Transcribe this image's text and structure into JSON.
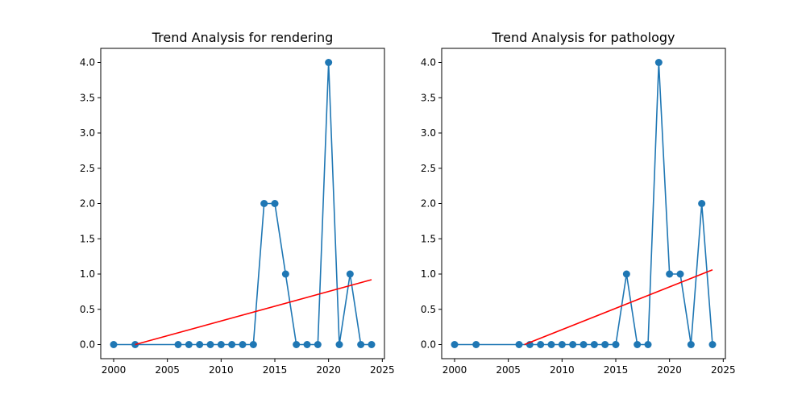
{
  "chart_data": [
    {
      "type": "line",
      "title": "Trend Analysis for rendering",
      "xlabel": "",
      "ylabel": "",
      "xlim": [
        1998.8,
        2025.2
      ],
      "ylim": [
        -0.2,
        4.2
      ],
      "xticks": [
        2000,
        2005,
        2010,
        2015,
        2020,
        2025
      ],
      "yticks": [
        0.0,
        0.5,
        1.0,
        1.5,
        2.0,
        2.5,
        3.0,
        3.5,
        4.0
      ],
      "grid": false,
      "series": [
        {
          "color": "#1f77b4",
          "marker": "circle",
          "x": [
            2000,
            2002,
            2006,
            2007,
            2008,
            2009,
            2010,
            2011,
            2012,
            2013,
            2014,
            2015,
            2016,
            2017,
            2018,
            2019,
            2020,
            2021,
            2022,
            2023,
            2024
          ],
          "y": [
            0,
            0,
            0,
            0,
            0,
            0,
            0,
            0,
            0,
            0,
            2,
            2,
            1,
            0,
            0,
            0,
            4,
            0,
            1,
            0,
            0
          ]
        }
      ],
      "trend": {
        "color": "#ff0000",
        "x": [
          2002,
          2024
        ],
        "y": [
          0.0,
          0.92
        ]
      }
    },
    {
      "type": "line",
      "title": "Trend Analysis for pathology",
      "xlabel": "",
      "ylabel": "",
      "xlim": [
        1998.8,
        2025.2
      ],
      "ylim": [
        -0.2,
        4.2
      ],
      "xticks": [
        2000,
        2005,
        2010,
        2015,
        2020,
        2025
      ],
      "yticks": [
        0.0,
        0.5,
        1.0,
        1.5,
        2.0,
        2.5,
        3.0,
        3.5,
        4.0
      ],
      "grid": false,
      "series": [
        {
          "color": "#1f77b4",
          "marker": "circle",
          "x": [
            2000,
            2002,
            2006,
            2007,
            2008,
            2009,
            2010,
            2011,
            2012,
            2013,
            2014,
            2015,
            2016,
            2017,
            2018,
            2019,
            2020,
            2021,
            2022,
            2023,
            2024
          ],
          "y": [
            0,
            0,
            0,
            0,
            0,
            0,
            0,
            0,
            0,
            0,
            0,
            0,
            1,
            0,
            0,
            4,
            1,
            1,
            0,
            2,
            0
          ]
        }
      ],
      "trend": {
        "color": "#ff0000",
        "x": [
          2006.5,
          2024
        ],
        "y": [
          0.0,
          1.06
        ]
      }
    }
  ]
}
